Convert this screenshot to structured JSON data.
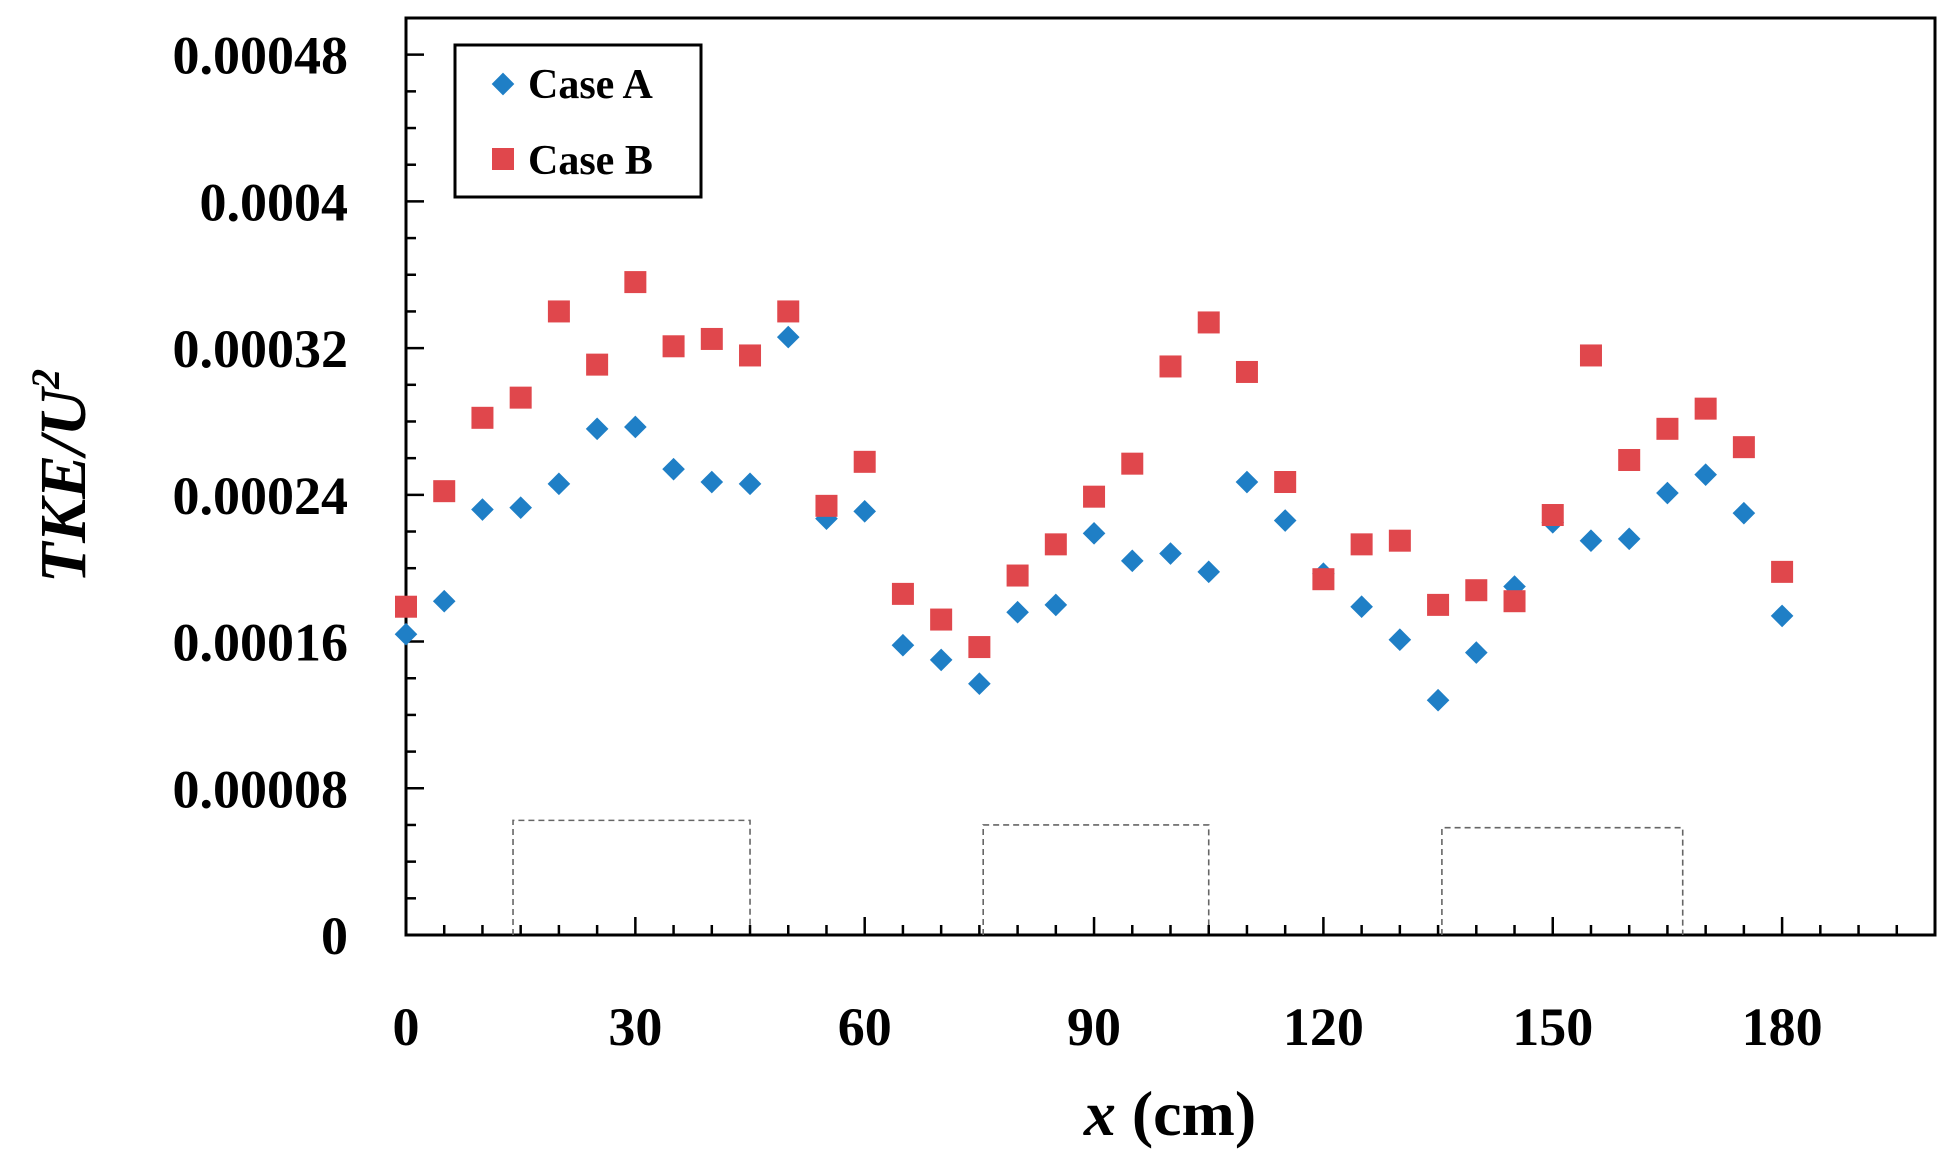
{
  "chart_data": {
    "type": "scatter",
    "title": "",
    "xlabel": "x (cm)",
    "xlabel_var": "x",
    "xlabel_unit": "(cm)",
    "ylabel": "TKE/U2",
    "ylabel_base": "TKE/U",
    "ylabel_exp": "2",
    "xlim": [
      0,
      200
    ],
    "ylim": [
      0,
      0.0005
    ],
    "x_ticks": [
      0,
      30,
      60,
      90,
      120,
      150,
      180
    ],
    "x_tick_labels": [
      "0",
      "30",
      "60",
      "90",
      "120",
      "150",
      "180"
    ],
    "x_minor_step": 5,
    "y_ticks": [
      0,
      8e-05,
      0.00016,
      0.00024,
      0.00032,
      0.0004,
      0.00048
    ],
    "y_tick_labels": [
      "0",
      "0.00008",
      "0.00016",
      "0.00024",
      "0.00032",
      "0.0004",
      "0.00048"
    ],
    "y_minor_step": 2e-05,
    "grid": false,
    "legend_position": "top-left",
    "series": [
      {
        "name": "Case A",
        "marker": "diamond",
        "color": "#1f7fc6",
        "x": [
          0,
          5,
          10,
          15,
          20,
          25,
          30,
          35,
          40,
          45,
          50,
          55,
          60,
          65,
          70,
          75,
          80,
          85,
          90,
          95,
          100,
          105,
          110,
          115,
          120,
          125,
          130,
          135,
          140,
          145,
          150,
          155,
          160,
          165,
          170,
          175,
          180
        ],
        "y": [
          0.000164,
          0.000182,
          0.000232,
          0.000233,
          0.000246,
          0.000276,
          0.000277,
          0.000254,
          0.000247,
          0.000246,
          0.000326,
          0.000227,
          0.000231,
          0.000158,
          0.00015,
          0.000137,
          0.000176,
          0.00018,
          0.000219,
          0.000204,
          0.000208,
          0.000198,
          0.000247,
          0.000226,
          0.000197,
          0.000179,
          0.000161,
          0.000128,
          0.000154,
          0.00019,
          0.000225,
          0.000215,
          0.000216,
          0.000241,
          0.000251,
          0.00023,
          0.000174
        ]
      },
      {
        "name": "Case B",
        "marker": "square",
        "color": "#e0474c",
        "x": [
          0,
          5,
          10,
          15,
          20,
          25,
          30,
          35,
          40,
          45,
          50,
          55,
          60,
          65,
          70,
          75,
          80,
          85,
          90,
          95,
          100,
          105,
          110,
          115,
          120,
          125,
          130,
          135,
          140,
          145,
          150,
          155,
          160,
          165,
          170,
          175,
          180
        ],
        "y": [
          0.000179,
          0.000242,
          0.000282,
          0.000293,
          0.00034,
          0.000311,
          0.000356,
          0.000321,
          0.000325,
          0.000316,
          0.00034,
          0.000234,
          0.000258,
          0.000186,
          0.000172,
          0.000157,
          0.000196,
          0.000213,
          0.000239,
          0.000257,
          0.00031,
          0.000334,
          0.000307,
          0.000247,
          0.000194,
          0.000213,
          0.000215,
          0.00018,
          0.000188,
          0.000182,
          0.000229,
          0.000316,
          0.000259,
          0.000276,
          0.000287,
          0.000266,
          0.000198
        ]
      }
    ],
    "obstacles": [
      {
        "x_start": 14,
        "x_end": 45,
        "height": 6.25e-05
      },
      {
        "x_start": 75.5,
        "x_end": 105,
        "height": 6e-05
      },
      {
        "x_start": 135.5,
        "x_end": 167,
        "height": 5.85e-05
      }
    ]
  }
}
